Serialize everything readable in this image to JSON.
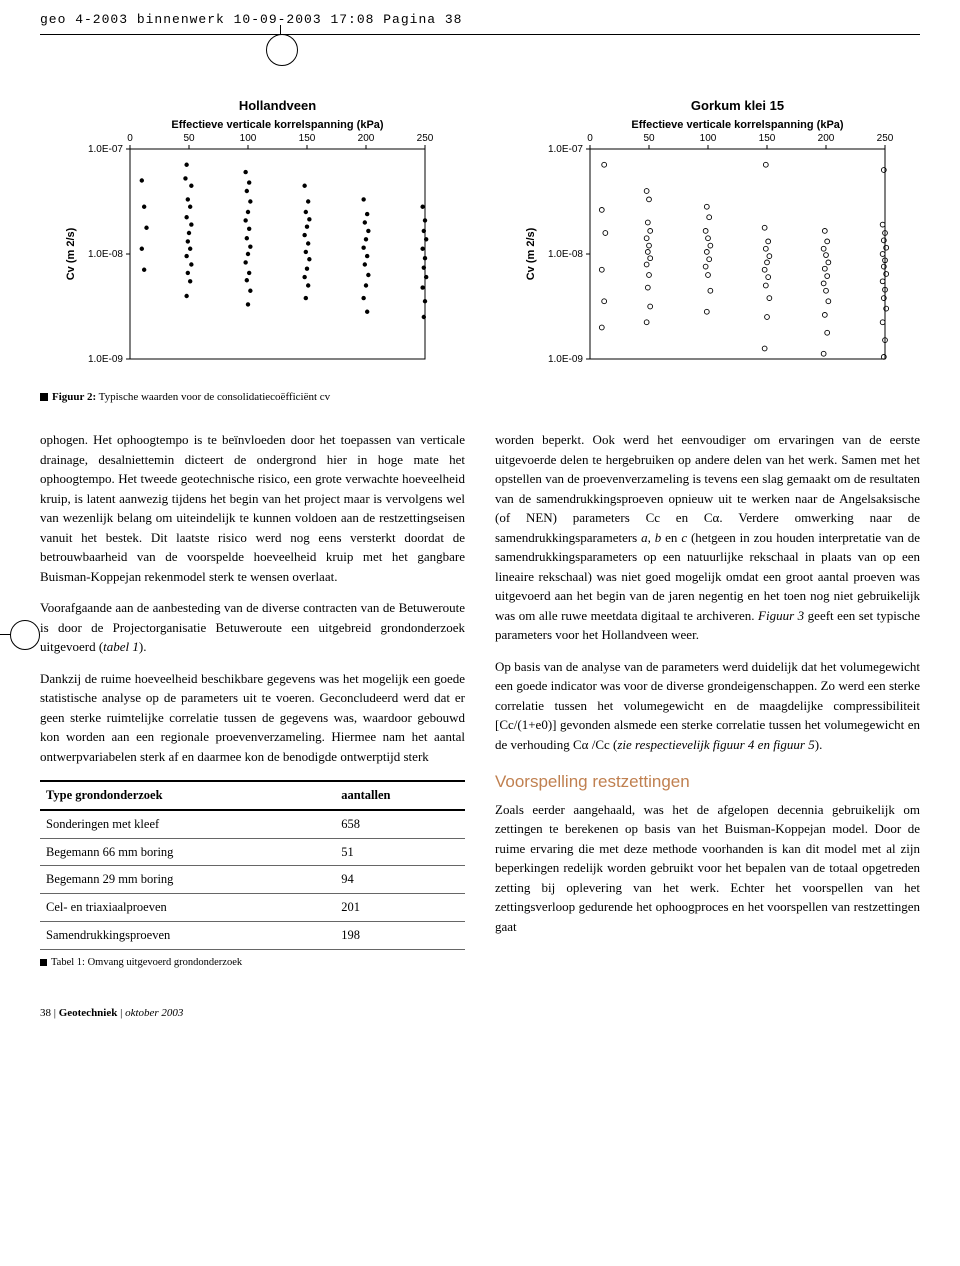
{
  "crop_header": "geo 4-2003 binnenwerk  10-09-2003  17:08  Pagina 38",
  "chart_left": {
    "type": "scatter",
    "title": "Hollandveen",
    "x_title": "Effectieve verticale korrelspanning (kPa)",
    "y_title": "Cv (m 2/s)",
    "x_ticks": [
      "0",
      "50",
      "100",
      "150",
      "200",
      "250"
    ],
    "y_ticks": [
      "1.0E-07",
      "1.0E-08",
      "1.0E-09"
    ],
    "marker": "filled-circle",
    "marker_color": "#000000",
    "background_color": "#ffffff",
    "border_color": "#000000",
    "grid": false,
    "xlim": [
      0,
      250
    ],
    "ylim_log": [
      1e-09,
      1e-07
    ],
    "points_xy_logy": [
      [
        10,
        -7.3
      ],
      [
        12,
        -7.55
      ],
      [
        14,
        -7.75
      ],
      [
        10,
        -7.95
      ],
      [
        12,
        -8.15
      ],
      [
        48,
        -7.15
      ],
      [
        47,
        -7.28
      ],
      [
        52,
        -7.35
      ],
      [
        49,
        -7.48
      ],
      [
        51,
        -7.55
      ],
      [
        48,
        -7.65
      ],
      [
        52,
        -7.72
      ],
      [
        50,
        -7.8
      ],
      [
        49,
        -7.88
      ],
      [
        51,
        -7.95
      ],
      [
        48,
        -8.02
      ],
      [
        52,
        -8.1
      ],
      [
        49,
        -8.18
      ],
      [
        51,
        -8.26
      ],
      [
        48,
        -8.4
      ],
      [
        98,
        -7.22
      ],
      [
        101,
        -7.32
      ],
      [
        99,
        -7.4
      ],
      [
        102,
        -7.5
      ],
      [
        100,
        -7.6
      ],
      [
        98,
        -7.68
      ],
      [
        101,
        -7.76
      ],
      [
        99,
        -7.85
      ],
      [
        102,
        -7.93
      ],
      [
        100,
        -8.0
      ],
      [
        98,
        -8.08
      ],
      [
        101,
        -8.18
      ],
      [
        99,
        -8.25
      ],
      [
        102,
        -8.35
      ],
      [
        100,
        -8.48
      ],
      [
        148,
        -7.35
      ],
      [
        151,
        -7.5
      ],
      [
        149,
        -7.6
      ],
      [
        152,
        -7.67
      ],
      [
        150,
        -7.74
      ],
      [
        148,
        -7.82
      ],
      [
        151,
        -7.9
      ],
      [
        149,
        -7.98
      ],
      [
        152,
        -8.05
      ],
      [
        150,
        -8.14
      ],
      [
        148,
        -8.22
      ],
      [
        151,
        -8.3
      ],
      [
        149,
        -8.42
      ],
      [
        198,
        -7.48
      ],
      [
        201,
        -7.62
      ],
      [
        199,
        -7.7
      ],
      [
        202,
        -7.78
      ],
      [
        200,
        -7.86
      ],
      [
        198,
        -7.94
      ],
      [
        201,
        -8.02
      ],
      [
        199,
        -8.1
      ],
      [
        202,
        -8.2
      ],
      [
        200,
        -8.3
      ],
      [
        198,
        -8.42
      ],
      [
        201,
        -8.55
      ],
      [
        248,
        -7.55
      ],
      [
        250,
        -7.68
      ],
      [
        249,
        -7.78
      ],
      [
        251,
        -7.86
      ],
      [
        248,
        -7.95
      ],
      [
        250,
        -8.04
      ],
      [
        249,
        -8.13
      ],
      [
        251,
        -8.22
      ],
      [
        248,
        -8.32
      ],
      [
        250,
        -8.45
      ],
      [
        249,
        -8.6
      ]
    ]
  },
  "chart_right": {
    "type": "scatter",
    "title": "Gorkum klei 15",
    "x_title": "Effectieve verticale korrelspanning (kPa)",
    "y_title": "Cv (m 2/s)",
    "x_ticks": [
      "0",
      "50",
      "100",
      "150",
      "200",
      "250"
    ],
    "y_ticks": [
      "1.0E-07",
      "1.0E-08",
      "1.0E-09"
    ],
    "marker": "open-circle",
    "marker_color": "#000000",
    "background_color": "#ffffff",
    "border_color": "#000000",
    "grid": false,
    "xlim": [
      0,
      250
    ],
    "ylim_log": [
      1e-09,
      1e-07
    ],
    "points_xy_logy": [
      [
        12,
        -7.15
      ],
      [
        10,
        -7.58
      ],
      [
        13,
        -7.8
      ],
      [
        10,
        -8.15
      ],
      [
        12,
        -8.45
      ],
      [
        10,
        -8.7
      ],
      [
        48,
        -7.4
      ],
      [
        50,
        -7.48
      ],
      [
        49,
        -7.7
      ],
      [
        51,
        -7.78
      ],
      [
        48,
        -7.85
      ],
      [
        50,
        -7.92
      ],
      [
        49,
        -7.98
      ],
      [
        51,
        -8.04
      ],
      [
        48,
        -8.1
      ],
      [
        50,
        -8.2
      ],
      [
        49,
        -8.32
      ],
      [
        51,
        -8.5
      ],
      [
        48,
        -8.65
      ],
      [
        99,
        -7.55
      ],
      [
        101,
        -7.65
      ],
      [
        98,
        -7.78
      ],
      [
        100,
        -7.85
      ],
      [
        102,
        -7.92
      ],
      [
        99,
        -7.98
      ],
      [
        101,
        -8.05
      ],
      [
        98,
        -8.12
      ],
      [
        100,
        -8.2
      ],
      [
        102,
        -8.35
      ],
      [
        99,
        -8.55
      ],
      [
        149,
        -7.15
      ],
      [
        148,
        -7.75
      ],
      [
        151,
        -7.88
      ],
      [
        149,
        -7.95
      ],
      [
        152,
        -8.02
      ],
      [
        150,
        -8.08
      ],
      [
        148,
        -8.15
      ],
      [
        151,
        -8.22
      ],
      [
        149,
        -8.3
      ],
      [
        152,
        -8.42
      ],
      [
        150,
        -8.6
      ],
      [
        148,
        -8.9
      ],
      [
        199,
        -7.78
      ],
      [
        201,
        -7.88
      ],
      [
        198,
        -7.95
      ],
      [
        200,
        -8.01
      ],
      [
        202,
        -8.08
      ],
      [
        199,
        -8.14
      ],
      [
        201,
        -8.21
      ],
      [
        198,
        -8.28
      ],
      [
        200,
        -8.35
      ],
      [
        202,
        -8.45
      ],
      [
        199,
        -8.58
      ],
      [
        201,
        -8.75
      ],
      [
        198,
        -8.95
      ],
      [
        249,
        -7.2
      ],
      [
        248,
        -7.72
      ],
      [
        250,
        -7.8
      ],
      [
        249,
        -7.87
      ],
      [
        251,
        -7.94
      ],
      [
        248,
        -8.0
      ],
      [
        250,
        -8.06
      ],
      [
        249,
        -8.12
      ],
      [
        251,
        -8.19
      ],
      [
        248,
        -8.26
      ],
      [
        250,
        -8.34
      ],
      [
        249,
        -8.42
      ],
      [
        251,
        -8.52
      ],
      [
        248,
        -8.65
      ],
      [
        250,
        -8.82
      ],
      [
        249,
        -8.98
      ]
    ]
  },
  "figure_caption": {
    "label": "Figuur 2:",
    "text": "Typische waarden voor de consolidatiecoëfficiënt cv"
  },
  "body_left": {
    "p1": "ophogen. Het ophoogtempo is te beïnvloeden door het toepassen van verticale drainage, desalniettemin dicteert de ondergrond hier in hoge mate het ophoogtempo. Het tweede geotechnische risico, een grote verwachte hoeveelheid kruip, is latent aanwezig tijdens het begin van het project maar is vervolgens wel van wezenlijk belang om uiteindelijk te kunnen voldoen aan de restzettingseisen vanuit het bestek. Dit laatste risico werd nog eens versterkt doordat de betrouwbaarheid van de voorspelde hoeveelheid kruip met het gangbare Buisman-Koppejan rekenmodel sterk te wensen overlaat.",
    "p2_pre": "Voorafgaande aan de aanbesteding van de diverse contracten van de Betuweroute is door de Projectorganisatie Betuweroute een uitgebreid grondonderzoek uitgevoerd (",
    "p2_em": "tabel 1",
    "p2_post": ").",
    "p3": "Dankzij de ruime hoeveelheid beschikbare gegevens was het mogelijk een goede statistische analyse op de parameters uit te voeren. Geconcludeerd werd dat er geen sterke ruimtelijke correlatie tussen de gegevens was, waardoor gebouwd kon worden aan een regionale proevenverzameling. Hiermee nam het aantal ontwerpvariabelen sterk af en daarmee kon de benodigde ontwerptijd sterk"
  },
  "table": {
    "headers": [
      "Type grondonderzoek",
      "aantallen"
    ],
    "rows": [
      [
        "Sonderingen met kleef",
        "658"
      ],
      [
        "Begemann 66 mm boring",
        "51"
      ],
      [
        "Begemann 29 mm boring",
        "94"
      ],
      [
        "Cel- en triaxiaalproeven",
        "201"
      ],
      [
        "Samendrukkingsproeven",
        "198"
      ]
    ],
    "caption": "Tabel 1: Omvang uitgevoerd grondonderzoek"
  },
  "body_right": {
    "p1_pre": "worden beperkt. Ook werd het eenvoudiger om ervaringen van de eerste uitgevoerde delen te hergebruiken op andere delen van het werk. Samen met het opstellen van de proevenverzameling is tevens een slag gemaakt om de resultaten van de samendrukkingsproeven opnieuw uit te werken naar de Angelsaksische (of NEN) parameters Cc en Cα. Verdere omwerking naar de samendrukkingsparameters ",
    "p1_em": "a, b",
    "p1_mid": " en ",
    "p1_em2": "c",
    "p1_post": " (hetgeen in zou houden interpretatie van de samendrukkingsparameters op een natuurlijke rekschaal in plaats van op een lineaire rekschaal) was niet goed mogelijk omdat een groot aantal proeven was uitgevoerd aan het begin van de jaren negentig en het toen nog niet gebruikelijk was om alle ruwe meetdata digitaal te archiveren. ",
    "p1_em3": "Figuur 3",
    "p1_tail": " geeft een set typische parameters voor het Hollandveen weer.",
    "p2_pre": "Op basis van de analyse van de parameters werd duidelijk dat het volumegewicht een goede indicator was voor de diverse grondeigenschappen. Zo werd een sterke correlatie tussen het volumegewicht en de maagdelijke compressibiliteit [Cc/(1+e0)] gevonden alsmede een sterke correlatie tussen het volumegewicht en de verhouding Cα /Cc (",
    "p2_em": "zie respectievelijk figuur 4 en figuur 5",
    "p2_post": ").",
    "heading": "Voorspelling restzettingen",
    "p3": "Zoals eerder aangehaald, was het de afgelopen decennia gebruikelijk om zettingen te berekenen op basis van het Buisman-Koppejan model. Door de ruime ervaring die met deze methode voorhanden is kan dit model met al zijn beperkingen redelijk worden gebruikt voor het bepalen van de totaal opgetreden zetting bij oplevering van het werk. Echter het voorspellen van het zettingsverloop gedurende het ophoogproces en het voorspellen van restzettingen gaat"
  },
  "footer": {
    "page": "38",
    "sep": " | ",
    "journal": "Geotechniek",
    "date": "oktober 2003"
  }
}
